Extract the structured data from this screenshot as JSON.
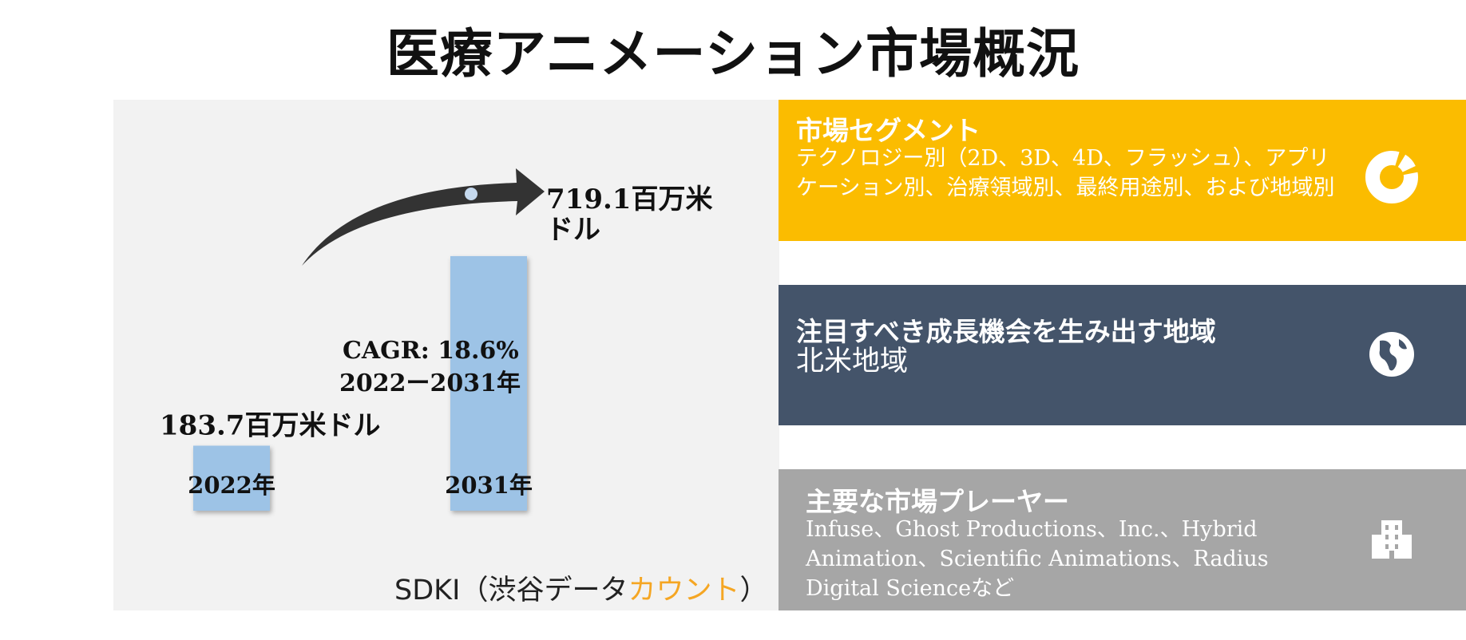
{
  "title": "医療アニメーション市場概況",
  "chart_data": {
    "type": "bar",
    "categories": [
      "2022年",
      "2031年"
    ],
    "values": [
      183.7,
      719.1
    ],
    "value_labels": [
      "183.7百万米ドル",
      "719.1百万米ドル"
    ],
    "cagr_label": "CAGR: 18.6%",
    "period_label": "2022ー2031年",
    "bar_color": "#9dc3e6",
    "arrow_color": "#333333"
  },
  "source": {
    "prefix": "SDKI（渋谷データ",
    "accent": "カウント",
    "suffix": "）",
    "accent_color": "#f5a623"
  },
  "panels": {
    "segment": {
      "title": "市場セグメント",
      "text": "テクノロジー別（2D、3D、4D、フラッシュ）、アプリケーション別、治療領域別、最終用途別、および地域別",
      "icon": "donut-chart-icon",
      "color": "#fbbc00"
    },
    "region": {
      "title": "注目すべき成長機会を生み出す地域",
      "text": "北米地域",
      "icon": "globe-icon",
      "color": "#44546a"
    },
    "players": {
      "title": "主要な市場プレーヤー",
      "text": "Infuse、Ghost Productions、Inc.、Hybrid Animation、Scientific Animations、Radius Digital Scienceなど",
      "icon": "building-icon",
      "color": "#a6a6a6"
    }
  }
}
